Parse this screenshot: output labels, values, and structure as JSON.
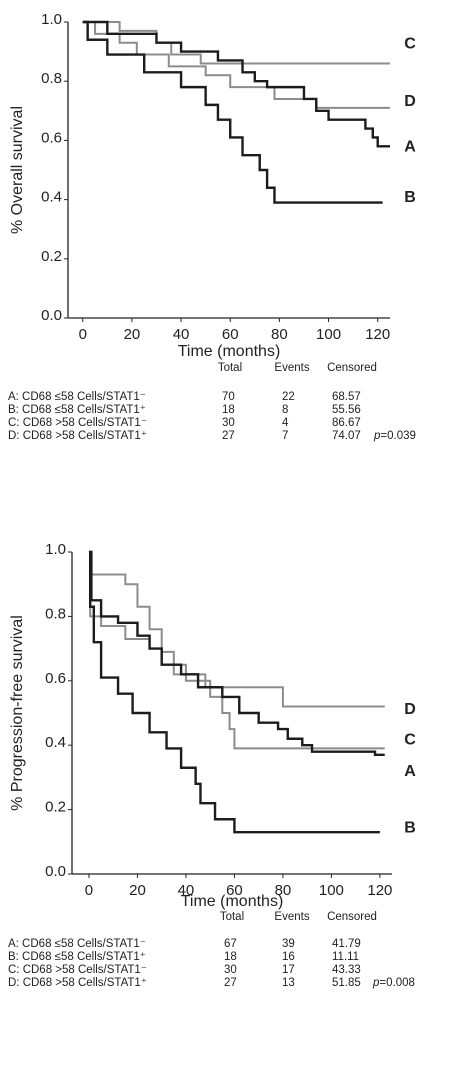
{
  "chart_data": [
    {
      "type": "line",
      "step": true,
      "ylabel": "% Overall survival",
      "xlabel": "Time (months)",
      "xlim": [
        -6,
        125
      ],
      "ylim": [
        0,
        1
      ],
      "xticks": [
        0,
        20,
        40,
        60,
        80,
        100,
        120
      ],
      "yticks": [
        {
          "value": 0,
          "label": "0.0"
        },
        0.2,
        0.4,
        0.6,
        0.8,
        {
          "value": 1,
          "label": "1.0"
        }
      ],
      "series": [
        {
          "name": "C",
          "color": "#8c8c8c",
          "x": [
            0,
            15,
            30,
            36,
            48,
            125
          ],
          "values": [
            1.0,
            0.97,
            0.93,
            0.89,
            0.86,
            0.86
          ]
        },
        {
          "name": "D",
          "color": "#8c8c8c",
          "x": [
            0,
            5,
            15,
            22,
            35,
            50,
            60,
            78,
            95,
            125
          ],
          "values": [
            1.0,
            0.96,
            0.93,
            0.89,
            0.85,
            0.82,
            0.78,
            0.74,
            0.71,
            0.71
          ]
        },
        {
          "name": "A",
          "color": "#1c1c1c",
          "x": [
            0,
            10,
            30,
            40,
            55,
            65,
            70,
            75,
            90,
            95,
            100,
            115,
            118,
            120,
            125
          ],
          "values": [
            1.0,
            0.96,
            0.93,
            0.9,
            0.87,
            0.83,
            0.8,
            0.78,
            0.74,
            0.7,
            0.67,
            0.64,
            0.61,
            0.58,
            0.58
          ]
        },
        {
          "name": "B",
          "color": "#1c1c1c",
          "x": [
            0,
            2,
            10,
            25,
            40,
            50,
            55,
            60,
            65,
            72,
            75,
            78,
            122
          ],
          "values": [
            1.0,
            0.94,
            0.89,
            0.83,
            0.78,
            0.72,
            0.67,
            0.61,
            0.55,
            0.5,
            0.44,
            0.39,
            0.39
          ]
        }
      ],
      "table": {
        "columns": [
          "Total",
          "Events",
          "Censored"
        ],
        "rows": [
          {
            "label": "A: CD68 ≤58 Cells/STAT1⁻",
            "cells": [
              70,
              22,
              68.57
            ]
          },
          {
            "label": "B: CD68 ≤58 Cells/STAT1⁺",
            "cells": [
              18,
              8,
              55.56
            ]
          },
          {
            "label": "C: CD68 >58 Cells/STAT1⁻",
            "cells": [
              30,
              4,
              86.67
            ]
          },
          {
            "label": "D: CD68 >58 Cells/STAT1⁺",
            "cells": [
              27,
              7,
              74.07
            ]
          }
        ],
        "p_label": "p",
        "p_value": "=0.039"
      }
    },
    {
      "type": "line",
      "step": true,
      "ylabel": "% Progression-free survival",
      "xlabel": "Time (months)",
      "xlim": [
        -7,
        125
      ],
      "ylim": [
        0,
        1
      ],
      "xticks": [
        0,
        20,
        40,
        60,
        80,
        100,
        120
      ],
      "yticks": [
        {
          "value": 0,
          "label": "0.0"
        },
        0.2,
        0.4,
        0.6,
        0.8,
        {
          "value": 1,
          "label": "1.0"
        }
      ],
      "series": [
        {
          "name": "D",
          "color": "#8c8c8c",
          "x": [
            0,
            0.5,
            15,
            20,
            25,
            30,
            35,
            48,
            80,
            122
          ],
          "values": [
            1.0,
            0.93,
            0.9,
            0.83,
            0.76,
            0.69,
            0.62,
            0.58,
            0.52,
            0.52
          ]
        },
        {
          "name": "C",
          "color": "#8c8c8c",
          "x": [
            0,
            0.5,
            5,
            15,
            25,
            30,
            40,
            50,
            55,
            58,
            60,
            122
          ],
          "values": [
            1.0,
            0.8,
            0.77,
            0.73,
            0.7,
            0.65,
            0.6,
            0.55,
            0.5,
            0.45,
            0.39,
            0.39
          ]
        },
        {
          "name": "A",
          "color": "#1c1c1c",
          "x": [
            0,
            1,
            5,
            12,
            20,
            25,
            30,
            38,
            45,
            55,
            62,
            70,
            78,
            82,
            88,
            92,
            118,
            122
          ],
          "values": [
            1.0,
            0.85,
            0.8,
            0.78,
            0.74,
            0.7,
            0.65,
            0.62,
            0.58,
            0.55,
            0.5,
            0.47,
            0.45,
            0.42,
            0.4,
            0.38,
            0.37,
            0.37
          ]
        },
        {
          "name": "B",
          "color": "#1c1c1c",
          "x": [
            0,
            0.5,
            2,
            5,
            12,
            18,
            25,
            32,
            38,
            44,
            46,
            52,
            60,
            120
          ],
          "values": [
            1.0,
            0.83,
            0.72,
            0.61,
            0.56,
            0.5,
            0.44,
            0.39,
            0.33,
            0.28,
            0.22,
            0.17,
            0.13,
            0.13
          ]
        }
      ],
      "table": {
        "columns": [
          "Total",
          "Events",
          "Censored"
        ],
        "rows": [
          {
            "label": "A: CD68 ≤58 Cells/STAT1⁻",
            "cells": [
              67,
              39,
              41.79
            ]
          },
          {
            "label": "B: CD68 ≤58 Cells/STAT1⁺",
            "cells": [
              18,
              16,
              11.11
            ]
          },
          {
            "label": "C: CD68 >58 Cells/STAT1⁻",
            "cells": [
              30,
              17,
              43.33
            ]
          },
          {
            "label": "D: CD68 >58 Cells/STAT1⁺",
            "cells": [
              27,
              13,
              51.85
            ]
          }
        ],
        "p_label": "p",
        "p_value": "=0.008"
      }
    }
  ]
}
